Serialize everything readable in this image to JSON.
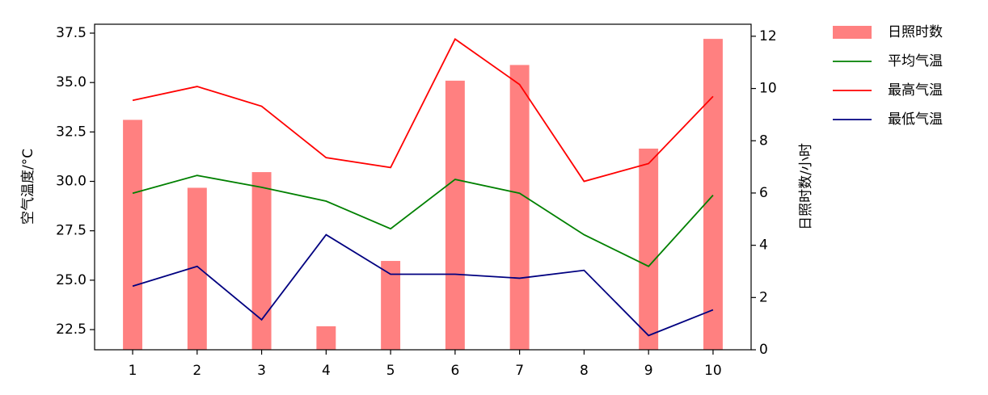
{
  "chart_data": {
    "type": "combo",
    "ylabel": "空气温度/°C",
    "y2label": "日照时数/小时",
    "x": [
      1,
      2,
      3,
      4,
      5,
      6,
      7,
      8,
      9,
      10
    ],
    "xlim": [
      0.41,
      10.59
    ],
    "xticks": [
      1,
      2,
      3,
      4,
      5,
      6,
      7,
      8,
      9,
      10
    ],
    "ylim": [
      21.48,
      37.95
    ],
    "yticks": [
      {
        "value": 22.5,
        "label": "22.5"
      },
      {
        "value": 25,
        "label": "25.0"
      },
      {
        "value": 27.5,
        "label": "27.5"
      },
      {
        "value": 30,
        "label": "30.0"
      },
      {
        "value": 32.5,
        "label": "32.5"
      },
      {
        "value": 35,
        "label": "35.0"
      },
      {
        "value": 37.5,
        "label": "37.5"
      }
    ],
    "y2lim": [
      0,
      12.46
    ],
    "y2ticks": [
      0,
      2,
      4,
      6,
      8,
      10,
      12
    ],
    "legend": "outside-right",
    "series": [
      {
        "name": "日照时数",
        "type": "bar",
        "axis": "y2",
        "color": "#ff8080",
        "values": [
          8.8,
          6.2,
          6.8,
          0.9,
          3.4,
          10.3,
          10.9,
          0,
          7.7,
          11.9
        ]
      },
      {
        "name": "平均气温",
        "type": "line",
        "color": "#008000",
        "values": [
          29.4,
          30.3,
          29.7,
          29.0,
          27.6,
          30.1,
          29.4,
          27.3,
          25.7,
          29.3
        ]
      },
      {
        "name": "最高气温",
        "type": "line",
        "color": "#ff0000",
        "values": [
          34.1,
          34.8,
          33.8,
          31.2,
          30.7,
          37.2,
          34.9,
          30.0,
          30.9,
          34.3
        ]
      },
      {
        "name": "最低气温",
        "type": "line",
        "color": "#000080",
        "values": [
          24.7,
          25.7,
          23.0,
          27.3,
          25.3,
          25.3,
          25.1,
          25.5,
          22.2,
          23.5
        ]
      }
    ]
  }
}
